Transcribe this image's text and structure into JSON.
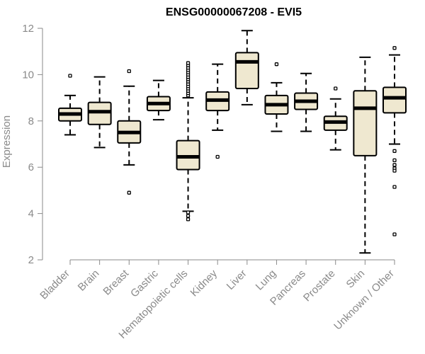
{
  "chart_data": {
    "type": "box",
    "title": "ENSG00000067208 - EVI5",
    "xlabel": "",
    "ylabel": "Expression",
    "ylim": [
      2,
      12
    ],
    "yticks": [
      2,
      4,
      6,
      8,
      10,
      12
    ],
    "box_fill": "#efe8d0",
    "stroke_color": "#000000",
    "axis_color": "#8a8a8a",
    "categories": [
      "Bladder",
      "Brain",
      "Breast",
      "Gastric",
      "Hematopoietic cells",
      "Kidney",
      "Liver",
      "Lung",
      "Pancreas",
      "Prostate",
      "Skin",
      "Unknown / Other"
    ],
    "boxes": [
      {
        "name": "Bladder",
        "lower_whisker": 7.4,
        "q1": 8.0,
        "median": 8.3,
        "q3": 8.55,
        "upper_whisker": 9.1,
        "outliers": [
          9.95
        ]
      },
      {
        "name": "Brain",
        "lower_whisker": 6.85,
        "q1": 7.85,
        "median": 8.4,
        "q3": 8.8,
        "upper_whisker": 9.9,
        "outliers": []
      },
      {
        "name": "Breast",
        "lower_whisker": 6.1,
        "q1": 7.05,
        "median": 7.5,
        "q3": 8.0,
        "upper_whisker": 9.5,
        "outliers": [
          10.15,
          4.9
        ]
      },
      {
        "name": "Gastric",
        "lower_whisker": 8.05,
        "q1": 8.45,
        "median": 8.75,
        "q3": 9.05,
        "upper_whisker": 9.75,
        "outliers": []
      },
      {
        "name": "Hematopoietic cells",
        "lower_whisker": 4.1,
        "q1": 5.9,
        "median": 6.45,
        "q3": 7.15,
        "upper_whisker": 9.0,
        "outliers": [
          9.1,
          9.2,
          9.3,
          9.4,
          9.5,
          9.6,
          9.7,
          9.8,
          9.9,
          10.0,
          10.1,
          10.2,
          10.3,
          10.4,
          10.5,
          4.05,
          3.9,
          3.75
        ]
      },
      {
        "name": "Kidney",
        "lower_whisker": 7.6,
        "q1": 8.45,
        "median": 8.9,
        "q3": 9.25,
        "upper_whisker": 10.45,
        "outliers": [
          6.45
        ]
      },
      {
        "name": "Liver",
        "lower_whisker": 8.7,
        "q1": 9.4,
        "median": 10.55,
        "q3": 10.95,
        "upper_whisker": 11.9,
        "outliers": []
      },
      {
        "name": "Lung",
        "lower_whisker": 7.55,
        "q1": 8.3,
        "median": 8.7,
        "q3": 9.1,
        "upper_whisker": 9.65,
        "outliers": [
          10.45
        ]
      },
      {
        "name": "Pancreas",
        "lower_whisker": 7.55,
        "q1": 8.5,
        "median": 8.85,
        "q3": 9.2,
        "upper_whisker": 10.05,
        "outliers": []
      },
      {
        "name": "Prostate",
        "lower_whisker": 6.75,
        "q1": 7.6,
        "median": 7.95,
        "q3": 8.2,
        "upper_whisker": 8.95,
        "outliers": [
          9.4
        ]
      },
      {
        "name": "Skin",
        "lower_whisker": 2.3,
        "q1": 6.5,
        "median": 8.55,
        "q3": 9.3,
        "upper_whisker": 10.75,
        "outliers": []
      },
      {
        "name": "Unknown / Other",
        "lower_whisker": 7.0,
        "q1": 8.35,
        "median": 9.0,
        "q3": 9.45,
        "upper_whisker": 10.85,
        "outliers": [
          11.15,
          6.7,
          6.3,
          6.1,
          5.95,
          5.85,
          5.15,
          3.1
        ]
      }
    ]
  }
}
